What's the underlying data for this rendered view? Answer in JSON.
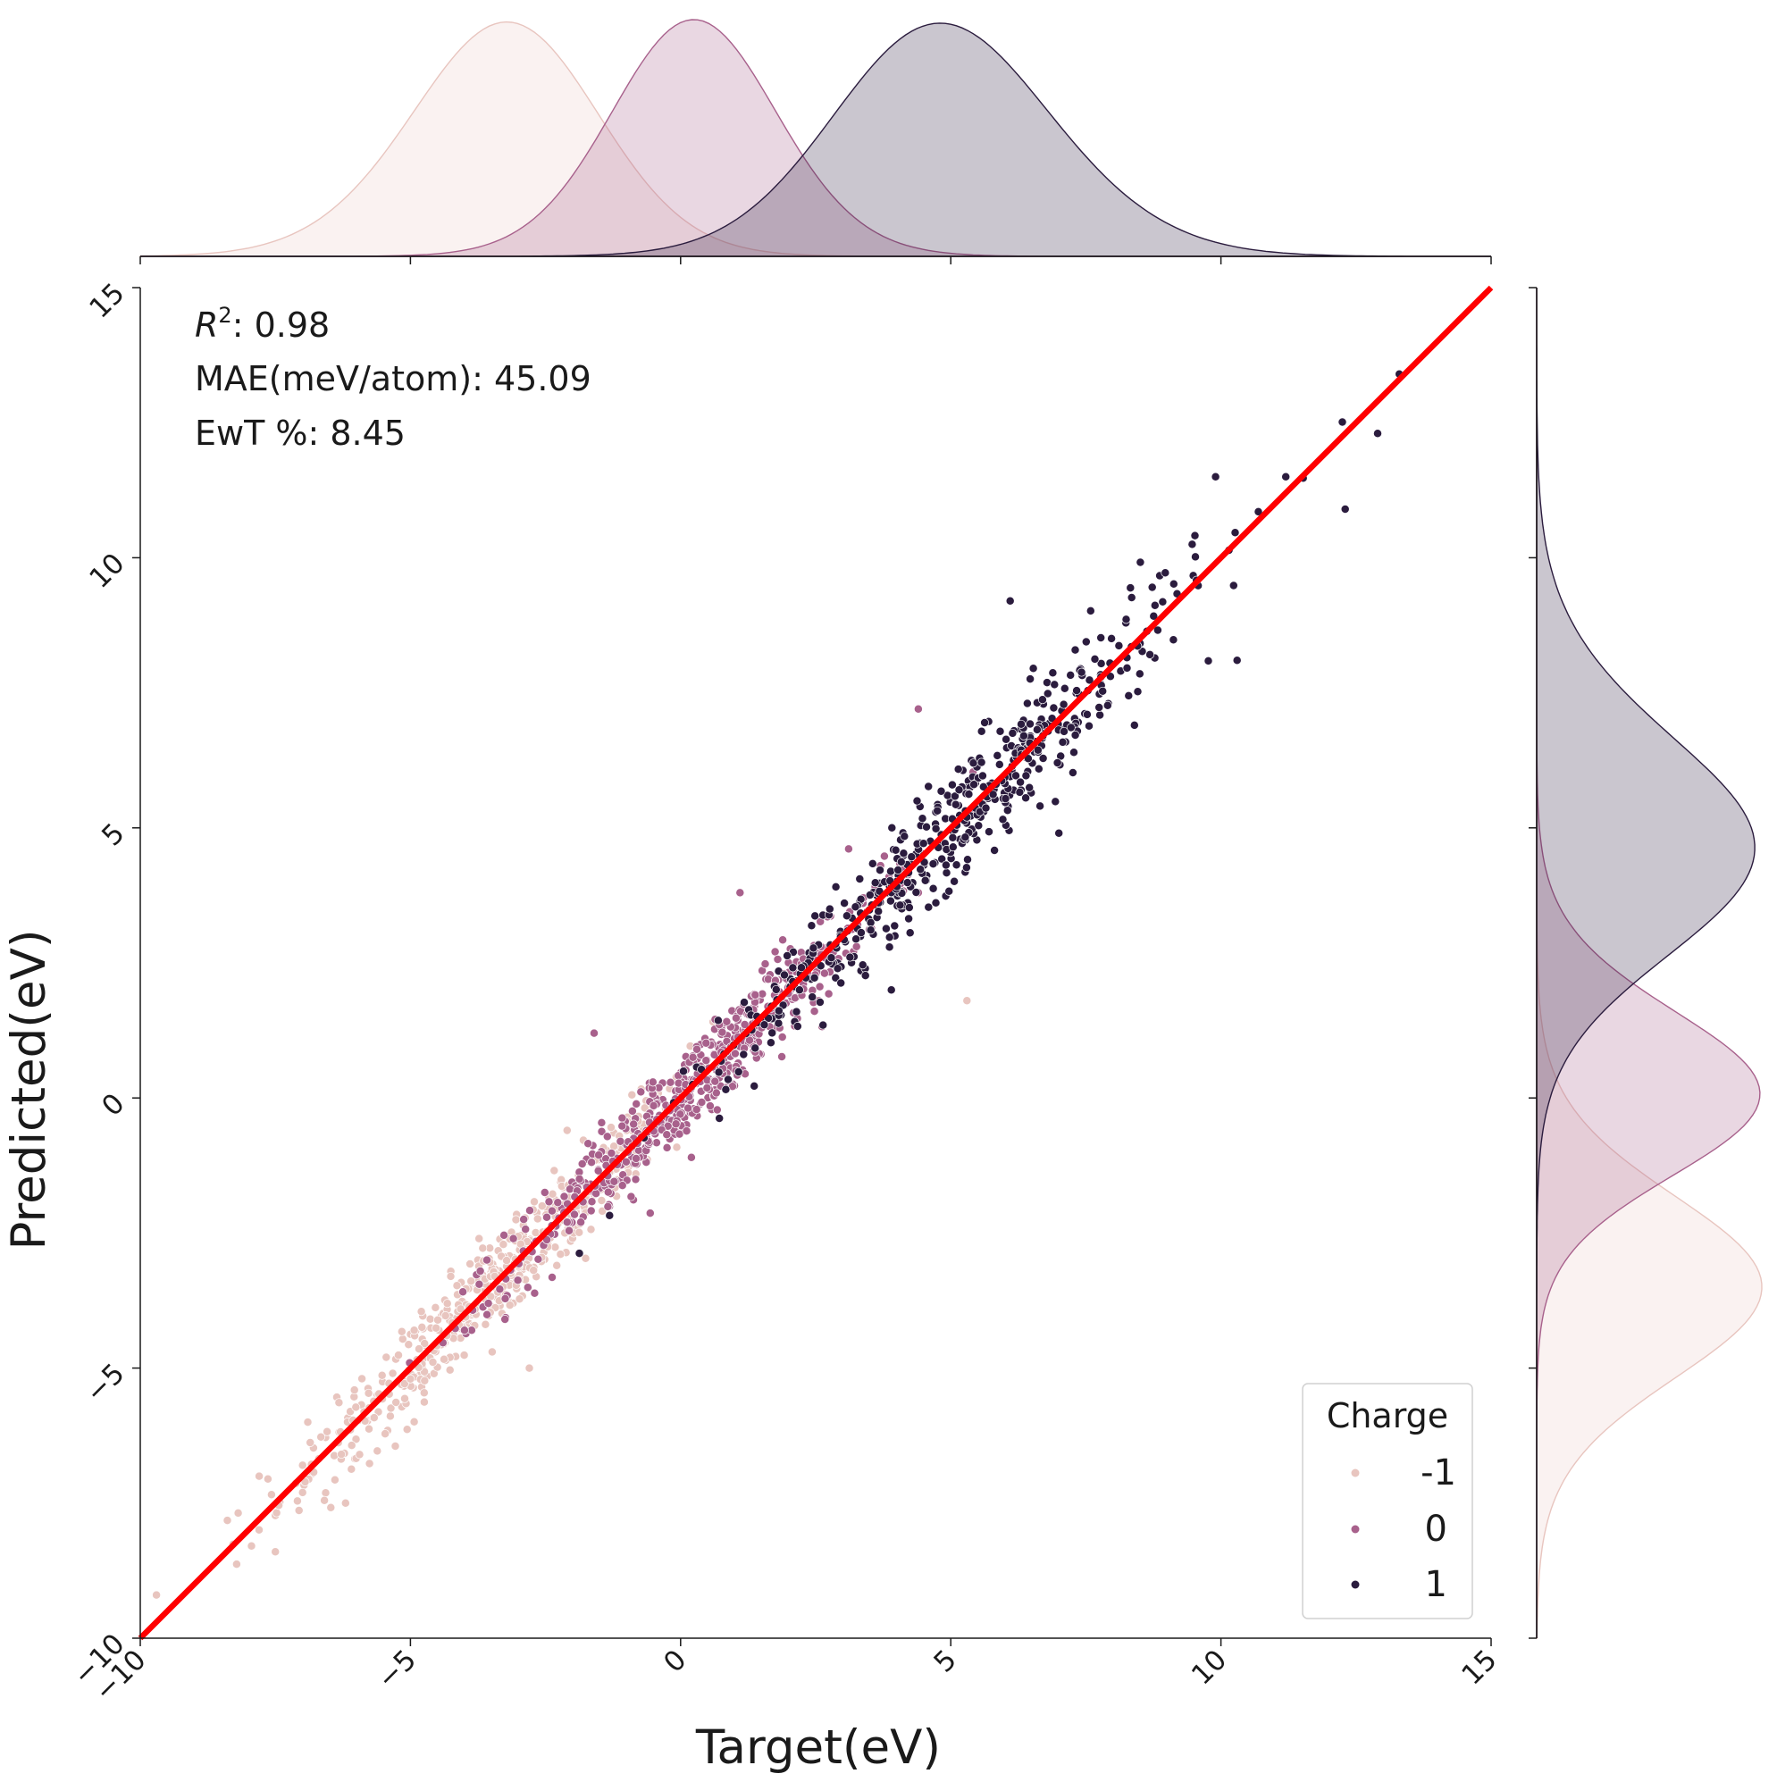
{
  "chart_data": {
    "type": "scatter",
    "title": "",
    "xlabel": "Target(eV)",
    "ylabel": "Predicted(eV)",
    "xlim": [
      -10,
      15
    ],
    "ylim": [
      -10,
      15
    ],
    "xticks": [
      -10,
      -5,
      0,
      5,
      10,
      15
    ],
    "yticks": [
      -10,
      -5,
      0,
      5,
      10,
      15
    ],
    "xtick_labels": [
      "−10",
      "−5",
      "0",
      "5",
      "10",
      "15"
    ],
    "ytick_labels": [
      "−10",
      "−5",
      "0",
      "5",
      "10",
      "15"
    ],
    "grid": false,
    "annotations": {
      "r2_symbol": "R",
      "r2_exponent": "2",
      "r2_value": ": 0.98",
      "mae": "MAE(meV/atom): 45.09",
      "ewt": "EwT %: 8.45"
    },
    "reference_line": {
      "from": [
        -10,
        -10
      ],
      "to": [
        15,
        15
      ],
      "color": "#ff0000"
    },
    "legend": {
      "title": "Charge",
      "placement": "lower-right",
      "entries": [
        "-1",
        "0",
        "1"
      ]
    },
    "series": [
      {
        "name": "-1",
        "color": "#e8c5bf",
        "mean": -3.5,
        "std": 1.9,
        "scatter_std": 0.4,
        "sample_points": [
          [
            -9.7,
            -9.2
          ],
          [
            -7.8,
            -7.0
          ],
          [
            -7.5,
            -8.4
          ],
          [
            -6.9,
            -6.0
          ],
          [
            -6.2,
            -7.5
          ],
          [
            -5.0,
            -5.2
          ],
          [
            -4.1,
            -4.2
          ],
          [
            -3.0,
            -3.1
          ],
          [
            -2.1,
            -0.6
          ],
          [
            -2.8,
            -5.0
          ],
          [
            -1.0,
            -0.6
          ],
          [
            0.4,
            0.5
          ],
          [
            5.3,
            1.8
          ]
        ],
        "marginal_x_peak": -3.0,
        "marginal_y_peak": -3.5
      },
      {
        "name": "0",
        "color": "#a8618c",
        "mean": 0.3,
        "std": 1.7,
        "scatter_std": 0.4,
        "sample_points": [
          [
            -4.0,
            -4.3
          ],
          [
            -2.1,
            -2.3
          ],
          [
            -0.6,
            -0.8
          ],
          [
            0.2,
            0.2
          ],
          [
            1.1,
            3.8
          ],
          [
            1.5,
            1.3
          ],
          [
            2.6,
            2.8
          ],
          [
            3.7,
            4.3
          ],
          [
            4.4,
            3.8
          ],
          [
            4.4,
            7.2
          ],
          [
            -1.6,
            1.2
          ],
          [
            0.2,
            -1.1
          ]
        ],
        "marginal_x_peak": 0.2,
        "marginal_y_peak": -0.1
      },
      {
        "name": "1",
        "color": "#2b1c3e",
        "mean": 5.2,
        "std": 2.2,
        "scatter_std": 0.45,
        "sample_points": [
          [
            2.2,
            2.0
          ],
          [
            3.9,
            2.0
          ],
          [
            5.3,
            5.2
          ],
          [
            6.1,
            9.2
          ],
          [
            7.0,
            4.9
          ],
          [
            8.4,
            6.9
          ],
          [
            9.9,
            11.5
          ],
          [
            10.3,
            8.1
          ],
          [
            11.2,
            11.5
          ],
          [
            12.3,
            10.9
          ],
          [
            12.9,
            12.3
          ],
          [
            13.3,
            13.4
          ]
        ],
        "marginal_x_peak": 4.5,
        "marginal_y_peak": 4.2
      }
    ]
  }
}
